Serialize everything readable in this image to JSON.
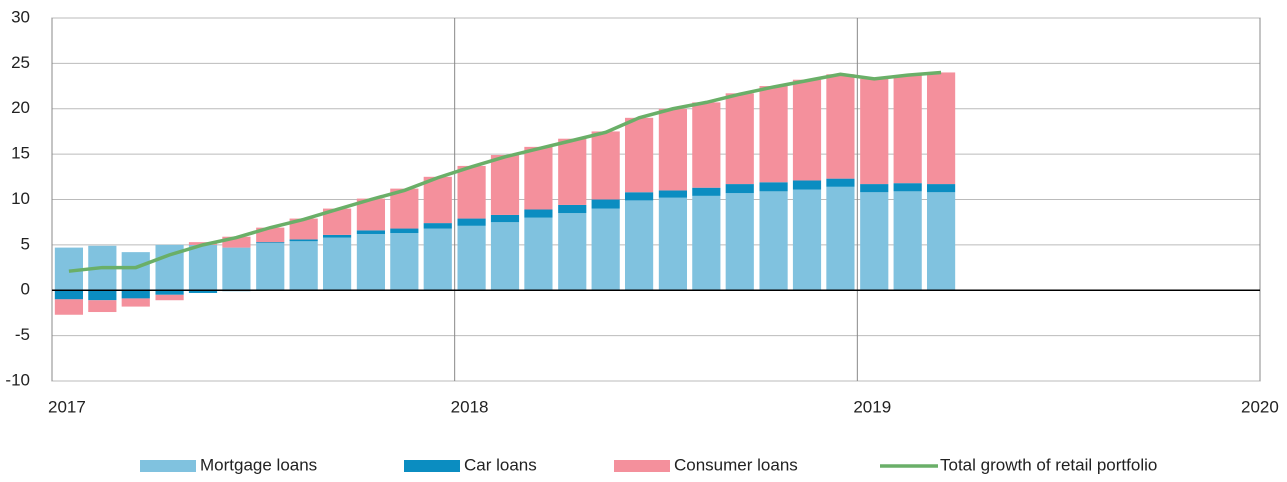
{
  "chart_data": {
    "type": "bar",
    "x": [
      2017.042,
      2017.125,
      2017.208,
      2017.292,
      2017.375,
      2017.458,
      2017.542,
      2017.625,
      2017.708,
      2017.792,
      2017.875,
      2017.958,
      2018.042,
      2018.125,
      2018.208,
      2018.292,
      2018.375,
      2018.458,
      2018.542,
      2018.625,
      2018.708,
      2018.792,
      2018.875,
      2018.958,
      2019.042,
      2019.125,
      2019.208
    ],
    "stacked": true,
    "series": [
      {
        "name": "Mortgage loans",
        "color": "#80c2df",
        "values": [
          4.7,
          4.9,
          4.2,
          5.0,
          5.0,
          4.7,
          5.2,
          5.4,
          5.8,
          6.2,
          6.3,
          6.8,
          7.1,
          7.5,
          8.0,
          8.5,
          9.0,
          9.9,
          10.2,
          10.4,
          10.7,
          10.9,
          11.1,
          11.4,
          10.8,
          10.9,
          10.8
        ]
      },
      {
        "name": "Car loans",
        "color": "#0b8dc1",
        "values": [
          -1.0,
          -1.1,
          -0.9,
          -0.5,
          -0.3,
          -0.1,
          0.1,
          0.2,
          0.3,
          0.4,
          0.5,
          0.6,
          0.8,
          0.8,
          0.9,
          0.9,
          1.0,
          0.9,
          0.8,
          0.9,
          1.0,
          1.0,
          1.0,
          0.9,
          0.9,
          0.9,
          0.9
        ]
      },
      {
        "name": "Consumer loans",
        "color": "#f4909c",
        "values": [
          -1.7,
          -1.3,
          -0.9,
          -0.6,
          0.3,
          1.2,
          1.6,
          2.3,
          2.9,
          3.5,
          4.4,
          5.1,
          5.8,
          6.6,
          6.9,
          7.3,
          7.5,
          8.2,
          9.0,
          9.4,
          10.0,
          10.6,
          11.1,
          11.5,
          11.6,
          11.9,
          12.3
        ]
      },
      {
        "name": "Total growth of retail portfolio",
        "type": "line",
        "color": "#6aaf68",
        "values": [
          2.1,
          2.5,
          2.5,
          3.9,
          5.0,
          5.8,
          6.9,
          7.8,
          8.9,
          10.0,
          11.0,
          12.4,
          13.6,
          14.7,
          15.6,
          16.5,
          17.4,
          19.0,
          20.0,
          20.7,
          21.6,
          22.4,
          23.1,
          23.8,
          23.3,
          23.7,
          24.0
        ]
      }
    ],
    "xlim": [
      2017,
      2020
    ],
    "xticks": [
      2017,
      2018,
      2019,
      2020
    ],
    "ylim": [
      -10,
      30
    ],
    "yticks": [
      -10,
      -5,
      0,
      5,
      10,
      15,
      20,
      25,
      30
    ],
    "grid": true,
    "legend": "bottom"
  }
}
